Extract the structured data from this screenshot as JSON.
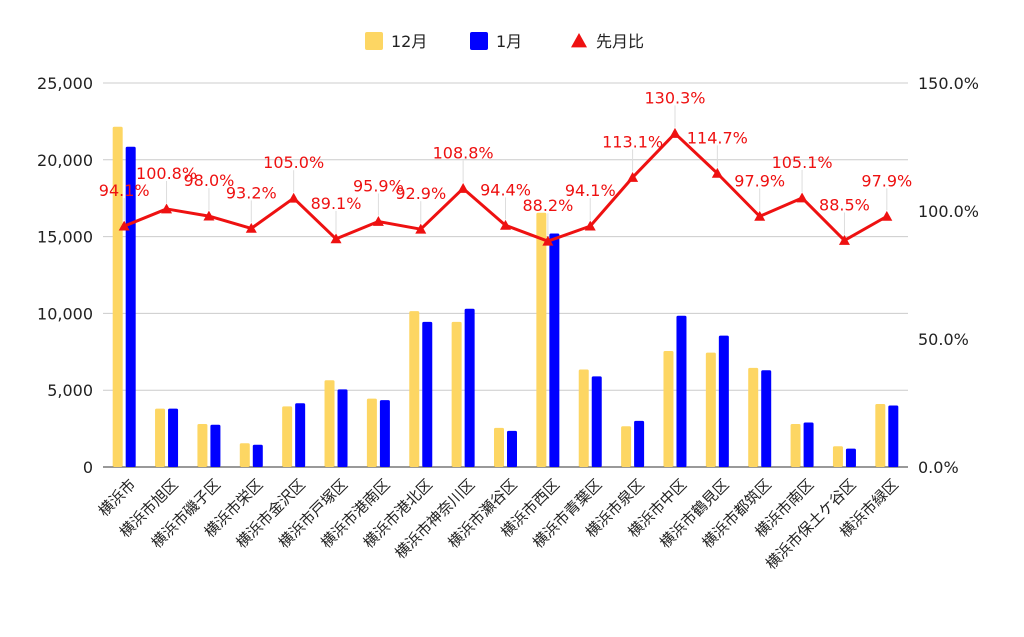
{
  "chart_data": {
    "type": "bar+line",
    "categories": [
      "横浜市",
      "横浜市旭区",
      "横浜市磯子区",
      "横浜市栄区",
      "横浜市金沢区",
      "横浜市戸塚区",
      "横浜市港南区",
      "横浜市港北区",
      "横浜市神奈川区",
      "横浜市瀬谷区",
      "横浜市西区",
      "横浜市青葉区",
      "横浜市泉区",
      "横浜市中区",
      "横浜市鶴見区",
      "横浜市都筑区",
      "横浜市南区",
      "横浜市保土ケ谷区",
      "横浜市緑区"
    ],
    "series": [
      {
        "name": "12月",
        "kind": "bar",
        "axis": "left",
        "color": "#fdd663",
        "values": [
          22150,
          3800,
          2800,
          1550,
          3950,
          5650,
          4450,
          10150,
          9450,
          2550,
          16550,
          6350,
          2650,
          7550,
          7450,
          6450,
          2800,
          1350,
          4100
        ]
      },
      {
        "name": "1月",
        "kind": "bar",
        "axis": "left",
        "color": "#0000ff",
        "values": [
          20850,
          3800,
          2750,
          1450,
          4150,
          5050,
          4350,
          9450,
          10300,
          2350,
          15200,
          5900,
          3000,
          9850,
          8550,
          6300,
          2900,
          1200,
          4000
        ]
      },
      {
        "name": "先月比",
        "kind": "line",
        "axis": "right",
        "color": "#ee1111",
        "values": [
          94.1,
          100.8,
          98.0,
          93.2,
          105.0,
          89.1,
          95.9,
          92.9,
          108.8,
          94.4,
          88.2,
          94.1,
          113.1,
          130.3,
          114.7,
          97.9,
          105.1,
          88.5,
          97.9
        ],
        "labels": [
          "94.1%",
          "100.8%",
          "98.0%",
          "93.2%",
          "105.0%",
          "89.1%",
          "95.9%",
          "92.9%",
          "108.8%",
          "94.4%",
          "88.2%",
          "94.1%",
          "113.1%",
          "130.3%",
          "114.7%",
          "97.9%",
          "105.1%",
          "88.5%",
          "97.9%"
        ]
      }
    ],
    "y_left": {
      "range": [
        0,
        25000
      ],
      "ticks": [
        0,
        5000,
        10000,
        15000,
        20000,
        25000
      ],
      "tick_labels": [
        "0",
        "5,000",
        "10,000",
        "15,000",
        "20,000",
        "25,000"
      ]
    },
    "y_right": {
      "range": [
        0,
        150
      ],
      "ticks": [
        0,
        50,
        100,
        150
      ],
      "tick_labels": [
        "0.0%",
        "50.0%",
        "100.0%",
        "150.0%"
      ]
    },
    "title": "",
    "xlabel": "",
    "ylabel": "",
    "grid": true,
    "legend_position": "top-center"
  }
}
